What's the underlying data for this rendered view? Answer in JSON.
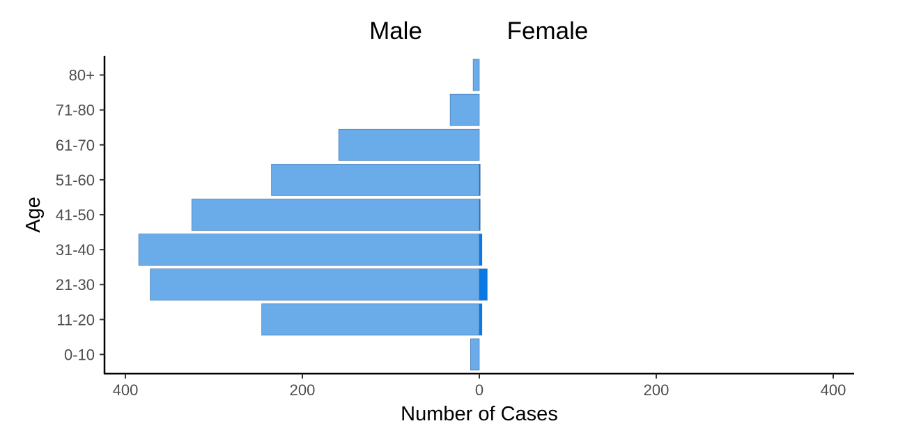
{
  "chart_data": {
    "type": "bar",
    "orientation": "horizontal",
    "subtype": "population-pyramid",
    "side_labels": {
      "left": "Male",
      "right": "Female"
    },
    "categories": [
      "0-10",
      "11-20",
      "21-30",
      "31-40",
      "41-50",
      "51-60",
      "61-70",
      "71-80",
      "80+"
    ],
    "series": [
      {
        "side": "left",
        "color": "#6aabea",
        "values": [
          10,
          246,
          372,
          385,
          325,
          235,
          159,
          33,
          7
        ]
      },
      {
        "side": "right",
        "color": "#0b78e3",
        "values": [
          0,
          3,
          9,
          3,
          1,
          1,
          0,
          0,
          0
        ]
      }
    ],
    "xlabel": "Number of Cases",
    "ylabel": "Age",
    "xlim": [
      -400,
      400
    ],
    "xticks": [
      -400,
      -200,
      0,
      200,
      400
    ],
    "xtick_labels": [
      "400",
      "200",
      "0",
      "200",
      "400"
    ],
    "grid": false,
    "legend": "none"
  }
}
